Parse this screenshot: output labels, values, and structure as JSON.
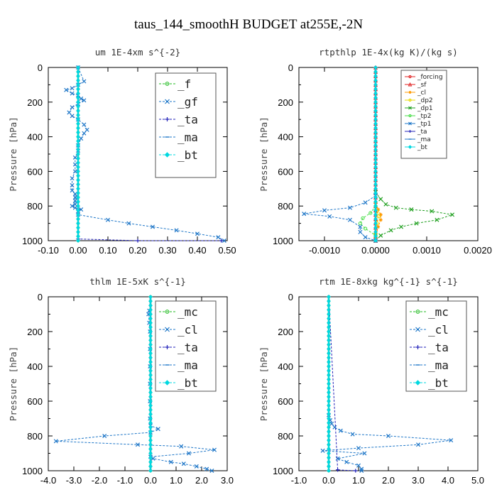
{
  "figure_title": "taus_144_smoothH  BUDGET at255E,-2N",
  "chart_data": [
    {
      "type": "line",
      "title": "um  1E-4xm s^{-2}",
      "ylabel": "Pressure [hPa]",
      "xlim": [
        -0.1,
        0.5
      ],
      "ylim": [
        1000,
        0
      ],
      "xticks": [
        "-0.10",
        "0.00",
        "0.10",
        "0.20",
        "0.30",
        "0.40",
        "0.50"
      ],
      "xtick_values": [
        -0.1,
        0.0,
        0.1,
        0.2,
        0.3,
        0.4,
        0.5
      ],
      "yticks": [
        "0",
        "200",
        "400",
        "600",
        "800",
        "1000"
      ],
      "ytick_values": [
        0,
        200,
        400,
        600,
        800,
        1000
      ],
      "legend_placement": "top-right",
      "series": [
        {
          "name": "_f",
          "color": "#22bb22",
          "marker": "circle",
          "x": [
            0.0,
            0.0
          ],
          "y": [
            0,
            1000
          ]
        },
        {
          "name": "_gf",
          "color": "#1f77c8",
          "marker": "x",
          "x": [
            0.0,
            0.02,
            0.0,
            -0.02,
            -0.04,
            -0.02,
            0.0,
            0.01,
            0.02,
            0.0,
            -0.02,
            -0.03,
            -0.02,
            0.0,
            0.02,
            0.03,
            0.02,
            0.01,
            0.0,
            0.0,
            -0.01,
            -0.01,
            -0.01,
            -0.02,
            -0.02,
            -0.02,
            -0.01,
            -0.01,
            -0.01,
            -0.01,
            -0.02,
            -0.01,
            0.01,
            0.0,
            0.0,
            0.1,
            0.17,
            0.25,
            0.33,
            0.4,
            0.47,
            0.49
          ],
          "y": [
            0,
            80,
            100,
            120,
            130,
            150,
            160,
            180,
            190,
            210,
            230,
            260,
            280,
            300,
            330,
            360,
            380,
            410,
            450,
            480,
            520,
            560,
            600,
            640,
            680,
            710,
            730,
            750,
            770,
            790,
            800,
            810,
            820,
            830,
            850,
            880,
            900,
            920,
            940,
            960,
            980,
            1000
          ]
        },
        {
          "name": "_ta",
          "color": "#2020b8",
          "marker": "plus",
          "x": [
            0.0,
            0.0,
            0.2,
            0.48
          ],
          "y": [
            0,
            990,
            1000,
            1000
          ]
        },
        {
          "name": "_ma",
          "color": "#1f77c8",
          "marker": "dash",
          "x": [
            0.0,
            0.0
          ],
          "y": [
            0,
            1000
          ]
        },
        {
          "name": "_bt",
          "color": "#00d8e0",
          "marker": "diamond",
          "x": [
            0.0,
            0.0
          ],
          "y": [
            0,
            1000
          ]
        }
      ]
    },
    {
      "type": "line",
      "title": "rtpthlp  1E-4x(kg K)/(kg s)",
      "ylabel": "Pressure [hPa]",
      "xlim": [
        -0.0015,
        0.002
      ],
      "ylim": [
        1000,
        0
      ],
      "xticks": [
        "-0.0010",
        "0.0000",
        "0.0010",
        "0.0020"
      ],
      "xtick_values": [
        -0.001,
        0.0,
        0.001,
        0.002
      ],
      "yticks": [
        "0",
        "200",
        "400",
        "600",
        "800",
        "1000"
      ],
      "ytick_values": [
        0,
        200,
        400,
        600,
        800,
        1000
      ],
      "legend_placement": "top-right",
      "series": [
        {
          "name": "_forcing",
          "color": "#e02020",
          "marker": "circle",
          "x": [
            0.0,
            0.0
          ],
          "y": [
            0,
            1000
          ]
        },
        {
          "name": "_sf",
          "color": "#e02020",
          "marker": "triangle",
          "x": [
            0.0,
            0.0
          ],
          "y": [
            0,
            1000
          ]
        },
        {
          "name": "_cl",
          "color": "#ff9900",
          "marker": "star",
          "x": [
            0.0,
            5e-05,
            0.0001,
            0.0001,
            5e-05,
            0.0
          ],
          "y": [
            780,
            820,
            850,
            880,
            920,
            980
          ]
        },
        {
          "name": "_dp2",
          "color": "#e8d800",
          "marker": "circle",
          "x": [
            0.0,
            3e-05,
            6e-05,
            3e-05,
            0.0
          ],
          "y": [
            800,
            830,
            860,
            900,
            960
          ]
        },
        {
          "name": "_dp1",
          "color": "#22a022",
          "marker": "x",
          "x": [
            0.0,
            0.0001,
            0.0002,
            0.0004,
            0.0007,
            0.0011,
            0.0015,
            0.0012,
            0.0008,
            0.0005,
            0.0003,
            0.0001,
            0.0
          ],
          "y": [
            720,
            760,
            790,
            810,
            820,
            830,
            850,
            880,
            900,
            920,
            940,
            970,
            1000
          ]
        },
        {
          "name": "_tp2",
          "color": "#44dd44",
          "marker": "circle",
          "x": [
            0.0,
            -0.0001,
            -0.00025,
            -0.0003,
            -0.0002,
            0.0
          ],
          "y": [
            800,
            840,
            870,
            900,
            930,
            970
          ]
        },
        {
          "name": "_tp1",
          "color": "#1f77c8",
          "marker": "x",
          "x": [
            0.0,
            -0.0002,
            -0.0005,
            -0.001,
            -0.0014,
            -0.0009,
            -0.0005,
            -0.0003,
            -0.0003,
            -0.0002,
            0.0
          ],
          "y": [
            740,
            780,
            810,
            825,
            845,
            860,
            880,
            920,
            950,
            980,
            1000
          ]
        },
        {
          "name": "_ta",
          "color": "#2020b8",
          "marker": "plus",
          "x": [
            0.0,
            0.0
          ],
          "y": [
            0,
            1000
          ]
        },
        {
          "name": "_ma",
          "color": "#1f77c8",
          "marker": "dash",
          "x": [
            0.0,
            0.0
          ],
          "y": [
            0,
            1000
          ]
        },
        {
          "name": "_bt",
          "color": "#00d8e0",
          "marker": "diamond",
          "x": [
            0.0,
            0.0
          ],
          "y": [
            0,
            1000
          ]
        }
      ]
    },
    {
      "type": "line",
      "title": "thlm  1E-5xK  s^{-1}",
      "ylabel": "Pressure [hPa]",
      "xlim": [
        -4.0,
        3.0
      ],
      "ylim": [
        1000,
        0
      ],
      "xticks": [
        "-4.0",
        "-3.0",
        "-2.0",
        "-1.0",
        "0.0",
        "1.0",
        "2.0",
        "3.0"
      ],
      "xtick_values": [
        -4.0,
        -3.0,
        -2.0,
        -1.0,
        0.0,
        1.0,
        2.0,
        3.0
      ],
      "yticks": [
        "0",
        "200",
        "400",
        "600",
        "800",
        "1000"
      ],
      "ytick_values": [
        0,
        200,
        400,
        600,
        800,
        1000
      ],
      "legend_placement": "top-right",
      "series": [
        {
          "name": "_mc",
          "color": "#22bb22",
          "marker": "circle",
          "x": [
            0.0,
            0.0
          ],
          "y": [
            0,
            1000
          ]
        },
        {
          "name": "_cl",
          "color": "#1f77c8",
          "marker": "x",
          "x": [
            -0.05,
            -0.08,
            -0.05,
            -0.02,
            -0.02,
            -0.02,
            -0.02,
            -0.02,
            -0.02,
            0.0,
            0.3,
            0.0,
            -1.8,
            -3.7,
            -0.5,
            1.2,
            2.5,
            1.5,
            0.0,
            0.1,
            0.8,
            1.3,
            1.8,
            2.2,
            2.4
          ],
          "y": [
            80,
            100,
            150,
            200,
            300,
            400,
            500,
            600,
            700,
            740,
            760,
            780,
            800,
            830,
            850,
            860,
            880,
            900,
            920,
            930,
            950,
            960,
            975,
            990,
            1000
          ]
        },
        {
          "name": "_ta",
          "color": "#2020b8",
          "marker": "plus",
          "x": [
            0.0,
            0.0
          ],
          "y": [
            0,
            1000
          ]
        },
        {
          "name": "_ma",
          "color": "#1f77c8",
          "marker": "dash",
          "x": [
            0.0,
            0.0
          ],
          "y": [
            0,
            1000
          ]
        },
        {
          "name": "_bt",
          "color": "#00d8e0",
          "marker": "diamond",
          "x": [
            0.0,
            0.0
          ],
          "y": [
            0,
            1000
          ]
        }
      ]
    },
    {
      "type": "line",
      "title": "rtm  1E-8xkg kg^{-1} s^{-1}",
      "ylabel": "Pressure [hPa]",
      "xlim": [
        -1.0,
        5.0
      ],
      "ylim": [
        1000,
        0
      ],
      "xticks": [
        "-1.0",
        "0.0",
        "1.0",
        "2.0",
        "3.0",
        "4.0",
        "5.0"
      ],
      "xtick_values": [
        -1.0,
        0.0,
        1.0,
        2.0,
        3.0,
        4.0,
        5.0
      ],
      "yticks": [
        "0",
        "200",
        "400",
        "600",
        "800",
        "1000"
      ],
      "ytick_values": [
        0,
        200,
        400,
        600,
        800,
        1000
      ],
      "legend_placement": "top-right",
      "series": [
        {
          "name": "_mc",
          "color": "#22bb22",
          "marker": "circle",
          "x": [
            0.0,
            0.0
          ],
          "y": [
            0,
            1000
          ]
        },
        {
          "name": "_cl",
          "color": "#1f77c8",
          "marker": "x",
          "x": [
            0.0,
            0.05,
            0.1,
            0.2,
            0.4,
            0.8,
            2.0,
            4.1,
            3.0,
            1.0,
            -0.2,
            1.2,
            0.3,
            0.6,
            1.0,
            1.1,
            1.1
          ],
          "y": [
            680,
            710,
            730,
            750,
            770,
            790,
            800,
            825,
            850,
            870,
            885,
            900,
            930,
            950,
            970,
            990,
            1000
          ]
        },
        {
          "name": "_ta",
          "color": "#2020b8",
          "marker": "plus",
          "x": [
            0.0,
            0.3,
            0.9
          ],
          "y": [
            0,
            995,
            1000
          ]
        },
        {
          "name": "_ma",
          "color": "#1f77c8",
          "marker": "dash",
          "x": [
            0.0,
            0.0
          ],
          "y": [
            0,
            1000
          ]
        },
        {
          "name": "_bt",
          "color": "#00d8e0",
          "marker": "diamond",
          "x": [
            0.0,
            0.0
          ],
          "y": [
            0,
            1000
          ]
        }
      ]
    }
  ]
}
